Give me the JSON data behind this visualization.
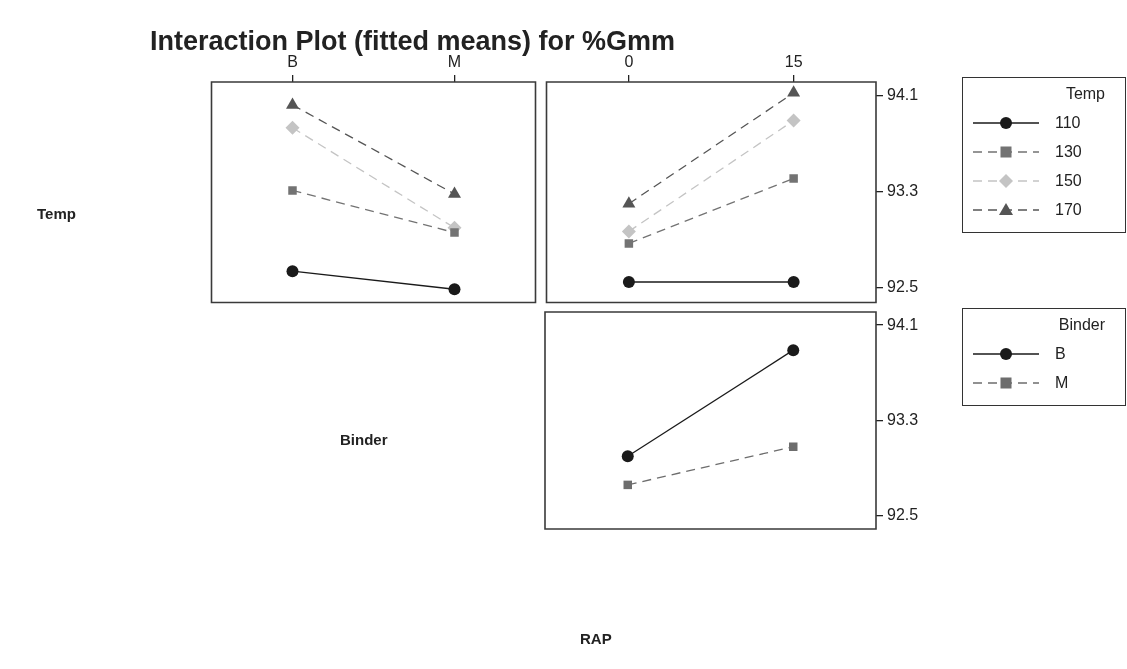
{
  "chart_data": [
    {
      "type": "line",
      "title": "Interaction Plot (fitted means) for %Gmm",
      "ylabel": "Temp",
      "categories": [
        "B",
        "M"
      ],
      "ylim": [
        92.38,
        94.21
      ],
      "tick_labels": "x",
      "legend": false,
      "series": [
        {
          "color": "#1a1a1a",
          "marker": "circle",
          "line_style": "solid",
          "values": [
            92.64,
            92.49
          ]
        },
        {
          "color": "#737373",
          "marker": "square",
          "line_style": "dashed",
          "values": [
            93.31,
            92.96
          ]
        },
        {
          "color": "#c4c4c4",
          "marker": "diamond",
          "line_style": "dashed",
          "values": [
            93.83,
            93.0
          ]
        },
        {
          "color": "#555555",
          "marker": "triangle",
          "line_style": "dashed",
          "values": [
            94.02,
            93.28
          ]
        }
      ]
    },
    {
      "type": "line",
      "categories": [
        "0",
        "15"
      ],
      "ylim": [
        92.38,
        94.21
      ],
      "yticks": [
        92.5,
        93.3,
        94.1
      ],
      "legend": "right",
      "legend_title": "Temp",
      "series": [
        {
          "name": "110",
          "color": "#1a1a1a",
          "marker": "circle",
          "line_style": "solid",
          "values": [
            92.55,
            92.55
          ]
        },
        {
          "name": "130",
          "color": "#737373",
          "marker": "square",
          "line_style": "dashed",
          "values": [
            92.87,
            93.41
          ]
        },
        {
          "name": "150",
          "color": "#c4c4c4",
          "marker": "diamond",
          "line_style": "dashed",
          "values": [
            92.97,
            93.89
          ]
        },
        {
          "name": "170",
          "color": "#555555",
          "marker": "triangle",
          "line_style": "dashed",
          "values": [
            93.2,
            94.12
          ]
        }
      ]
    },
    {
      "type": "line",
      "ylabel": "Binder",
      "xlabel": "RAP",
      "categories": [
        "0",
        "15"
      ],
      "ylim": [
        92.39,
        94.21
      ],
      "yticks": [
        92.5,
        93.3,
        94.1
      ],
      "tick_labels": "y",
      "legend": "right",
      "legend_title": "Binder",
      "series": [
        {
          "name": "B",
          "color": "#1a1a1a",
          "marker": "circle",
          "line_style": "solid",
          "values": [
            93.0,
            93.89
          ]
        },
        {
          "name": "M",
          "color": "#6d6d6d",
          "marker": "square",
          "line_style": "dashed",
          "values": [
            92.76,
            93.08
          ]
        }
      ]
    }
  ]
}
